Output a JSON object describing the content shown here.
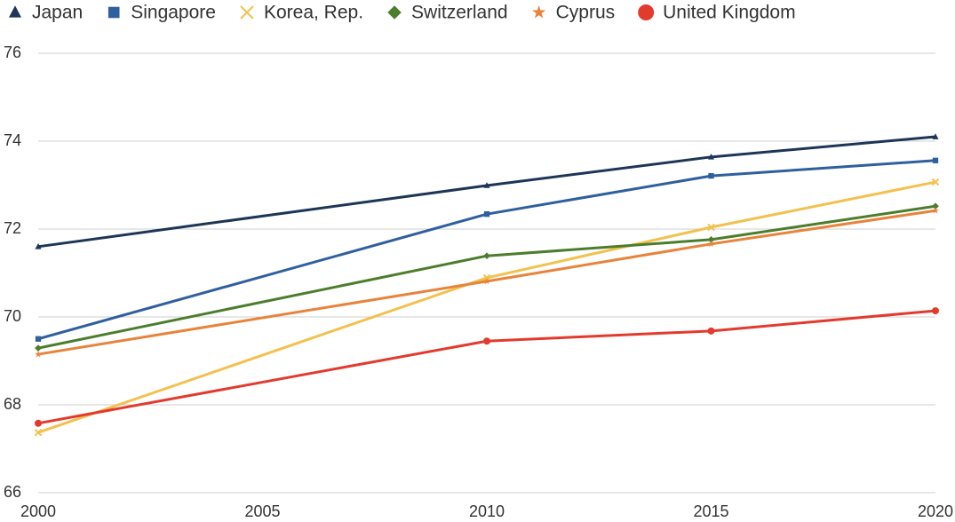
{
  "chart_data": {
    "type": "line",
    "x": [
      2000,
      2010,
      2015,
      2020
    ],
    "series": [
      {
        "name": "Japan",
        "color": "#1d3557",
        "marker": "triangle",
        "values": [
          71.6,
          72.99,
          73.64,
          74.1
        ]
      },
      {
        "name": "Singapore",
        "color": "#2f5f9e",
        "marker": "square",
        "values": [
          69.5,
          72.34,
          73.21,
          73.56
        ]
      },
      {
        "name": "Korea, Rep.",
        "color": "#f2c14e",
        "marker": "cross",
        "values": [
          67.37,
          70.89,
          72.04,
          73.07
        ]
      },
      {
        "name": "Switzerland",
        "color": "#4c7d2c",
        "marker": "diamond",
        "values": [
          69.29,
          71.39,
          71.76,
          72.52
        ]
      },
      {
        "name": "Cyprus",
        "color": "#e8833a",
        "marker": "star",
        "values": [
          69.15,
          70.81,
          71.66,
          72.42
        ]
      },
      {
        "name": "United Kingdom",
        "color": "#e23b2e",
        "marker": "circle",
        "values": [
          67.58,
          69.45,
          69.68,
          70.14
        ]
      }
    ],
    "xlim": [
      2000,
      2020
    ],
    "xticks": [
      2000,
      2005,
      2010,
      2015,
      2020
    ],
    "ylim": [
      66,
      76
    ],
    "yticks": [
      66,
      68,
      70,
      72,
      74,
      76
    ],
    "grid": true,
    "legend": "top"
  }
}
